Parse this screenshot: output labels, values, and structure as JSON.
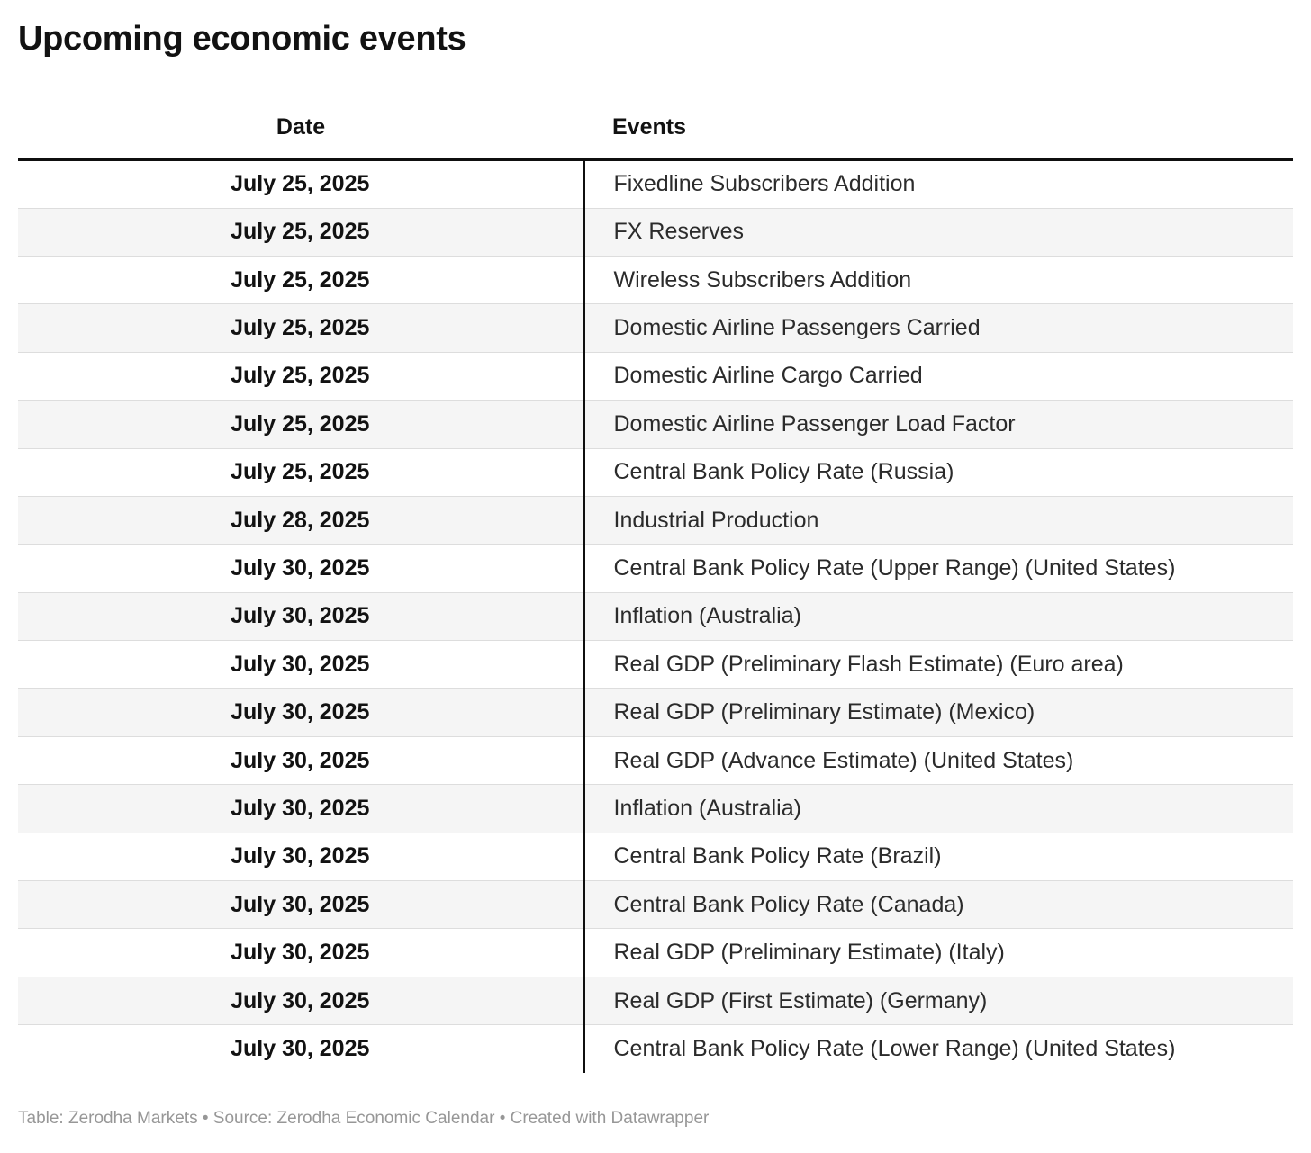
{
  "title": "Upcoming economic events",
  "chart_data": {
    "type": "table",
    "columns": [
      "Date",
      "Events"
    ],
    "rows": [
      [
        "July 25, 2025",
        "Fixedline Subscribers Addition"
      ],
      [
        "July 25, 2025",
        "FX Reserves"
      ],
      [
        "July 25, 2025",
        "Wireless Subscribers Addition"
      ],
      [
        "July 25, 2025",
        "Domestic Airline Passengers Carried"
      ],
      [
        "July 25, 2025",
        "Domestic Airline Cargo Carried"
      ],
      [
        "July 25, 2025",
        "Domestic Airline Passenger Load Factor"
      ],
      [
        "July 25, 2025",
        "Central Bank Policy Rate (Russia)"
      ],
      [
        "July 28, 2025",
        "Industrial Production"
      ],
      [
        "July 30, 2025",
        "Central Bank Policy Rate (Upper Range) (United States)"
      ],
      [
        "July 30, 2025",
        "Inflation (Australia)"
      ],
      [
        "July 30, 2025",
        "Real GDP (Preliminary Flash Estimate) (Euro area)"
      ],
      [
        "July 30, 2025",
        "Real GDP (Preliminary Estimate) (Mexico)"
      ],
      [
        "July 30, 2025",
        "Real GDP (Advance Estimate) (United States)"
      ],
      [
        "July 30, 2025",
        "Inflation (Australia)"
      ],
      [
        "July 30, 2025",
        "Central Bank Policy Rate (Brazil)"
      ],
      [
        "July 30, 2025",
        "Central Bank Policy Rate (Canada)"
      ],
      [
        "July 30, 2025",
        "Real GDP (Preliminary Estimate) (Italy)"
      ],
      [
        "July 30, 2025",
        "Real GDP (First Estimate) (Germany)"
      ],
      [
        "July 30, 2025",
        "Central Bank Policy Rate (Lower Range) (United States)"
      ]
    ],
    "title": "Upcoming economic events",
    "layout_hints": {
      "zebra_striping": true,
      "date_column_align": "center",
      "events_column_align": "left"
    }
  },
  "footer": {
    "text": "Table: Zerodha Markets • Source: Zerodha Economic Calendar • Created with Datawrapper"
  },
  "colors": {
    "zebra": "#f5f5f5",
    "row_divider": "#dddddd",
    "strong_line": "#0f0f0f",
    "title_text": "#121212",
    "body_text": "#2b2b2b",
    "footer_text": "#979797",
    "page_bg": "#ffffff"
  }
}
